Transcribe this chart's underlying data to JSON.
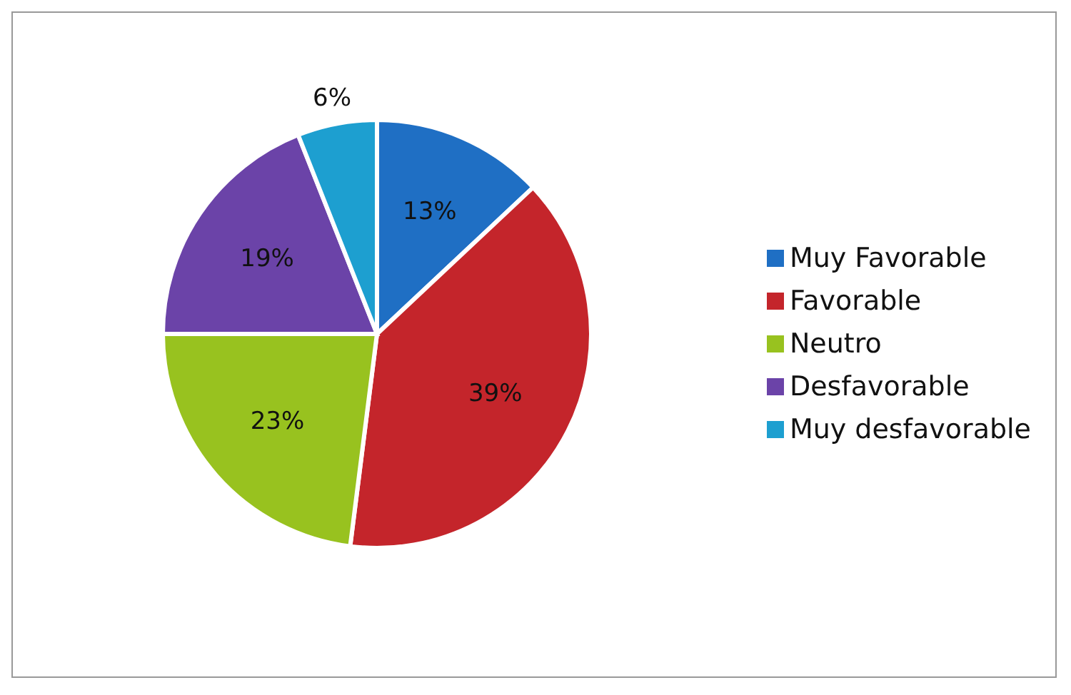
{
  "chart_data": {
    "type": "pie",
    "categories": [
      "Muy Favorable",
      "Favorable",
      "Neutro",
      "Desfavorable",
      "Muy desfavorable"
    ],
    "values": [
      13,
      39,
      23,
      19,
      6
    ],
    "colors": [
      "#1f6fc4",
      "#c4252b",
      "#98c21f",
      "#6b43a8",
      "#1d9fd0"
    ],
    "value_labels": [
      "13%",
      "39%",
      "23%",
      "19%",
      "6%"
    ],
    "legend": "right"
  }
}
